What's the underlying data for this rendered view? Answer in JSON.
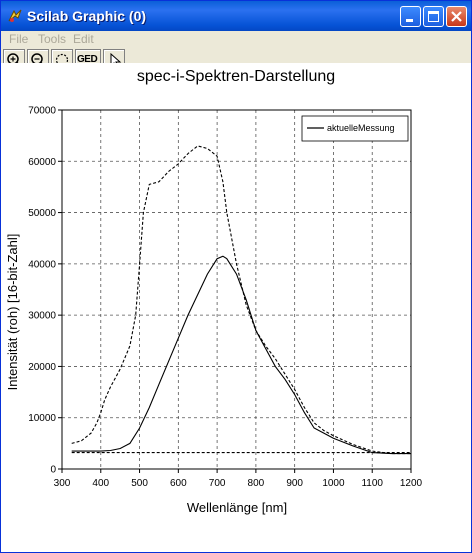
{
  "window": {
    "title": "Scilab Graphic (0)"
  },
  "menu": [
    {
      "label": "File"
    },
    {
      "label": "Tools"
    },
    {
      "label": "Edit"
    }
  ],
  "toolbar": {
    "ged_label": "GED"
  },
  "colors": {
    "titlebar": "#0a5fd8",
    "plot_line": "#000000",
    "grid": "#555555"
  },
  "chart_data": {
    "type": "line",
    "title": "spec-i-Spektren-Darstellung",
    "xlabel": "Wellenlänge [nm]",
    "ylabel": "Intensität (roh) [16-bit-Zahl]",
    "xlim": [
      300,
      1200
    ],
    "ylim": [
      0,
      70000
    ],
    "xticks": [
      300,
      400,
      500,
      600,
      700,
      800,
      900,
      1000,
      1100,
      1200
    ],
    "yticks": [
      0,
      10000,
      20000,
      30000,
      40000,
      50000,
      60000,
      70000
    ],
    "grid": true,
    "legend": {
      "position": "top-right",
      "entries": [
        "aktuelleMessung"
      ]
    },
    "series": [
      {
        "name": "aktuelleMessung",
        "style": "solid",
        "x": [
          325,
          350,
          400,
          425,
          450,
          475,
          500,
          525,
          550,
          575,
          600,
          625,
          650,
          675,
          700,
          715,
          725,
          750,
          775,
          800,
          825,
          850,
          875,
          900,
          925,
          950,
          975,
          1000,
          1050,
          1100,
          1150,
          1200
        ],
        "y": [
          3500,
          3500,
          3500,
          3600,
          4000,
          5000,
          8000,
          12000,
          16500,
          21000,
          25500,
          30000,
          34000,
          38000,
          41000,
          41500,
          41000,
          38000,
          33000,
          27000,
          23500,
          20000,
          17500,
          14500,
          11000,
          8000,
          7000,
          6000,
          4500,
          3200,
          3000,
          3000
        ]
      },
      {
        "style": "dashed",
        "x": [
          325,
          350,
          375,
          390,
          400,
          410,
          425,
          450,
          475,
          490,
          500,
          510,
          525,
          550,
          575,
          600,
          625,
          650,
          675,
          700,
          715,
          725,
          750,
          775,
          800,
          825,
          850,
          875,
          900,
          925,
          950,
          975,
          1000,
          1050,
          1100,
          1150,
          1200
        ],
        "y": [
          5000,
          5500,
          7000,
          9000,
          11000,
          13500,
          16000,
          19500,
          24000,
          30000,
          40000,
          50000,
          55500,
          56000,
          58000,
          59500,
          61500,
          63000,
          62500,
          61000,
          56000,
          50000,
          40000,
          32000,
          27000,
          24000,
          21500,
          18500,
          15500,
          12000,
          9000,
          7500,
          6500,
          4800,
          3500,
          3000,
          3000
        ]
      },
      {
        "style": "dashed",
        "x": [
          325,
          1200
        ],
        "y": [
          3200,
          3200
        ]
      }
    ]
  }
}
